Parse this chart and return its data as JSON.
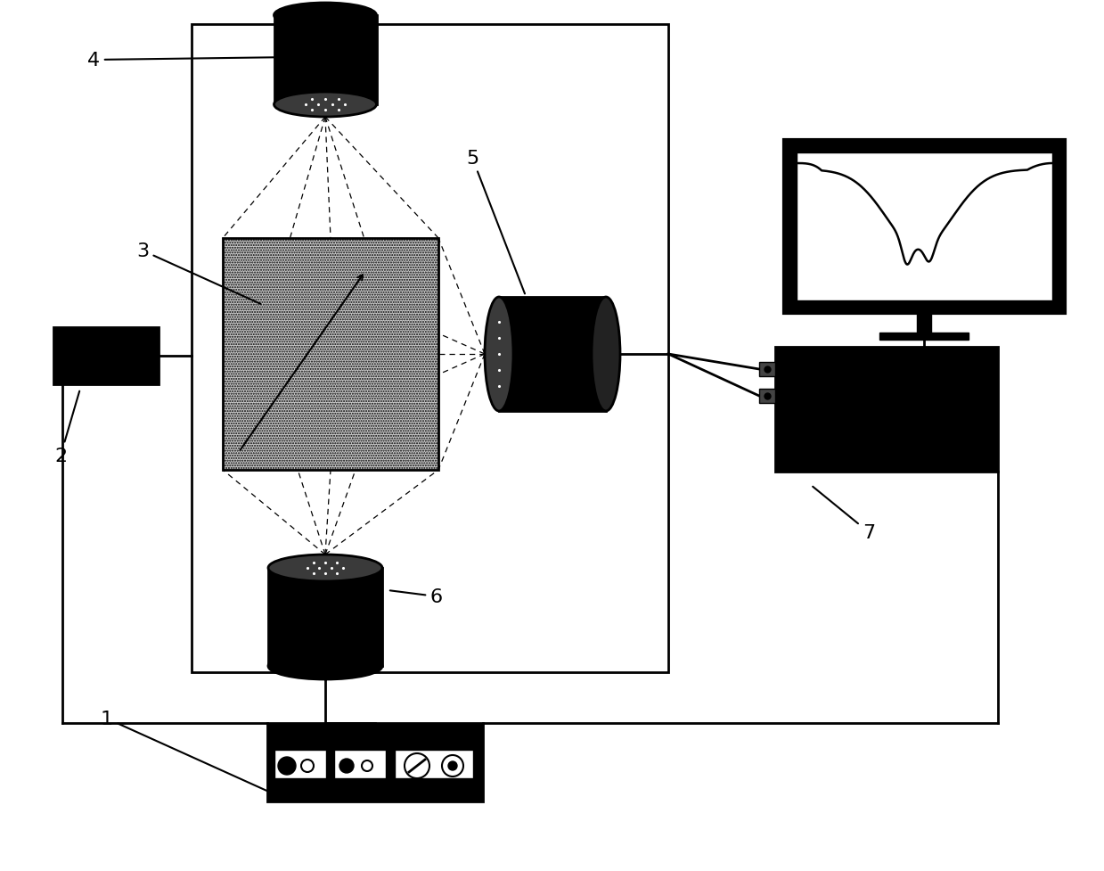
{
  "bg_color": "#ffffff",
  "black": "#000000",
  "lw": 2.0,
  "label_fs": 16
}
